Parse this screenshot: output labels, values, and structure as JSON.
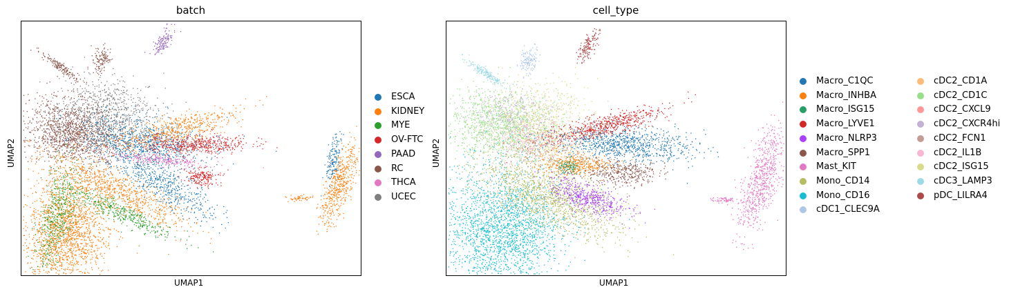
{
  "chart_data": [
    {
      "type": "scatter",
      "title": "batch",
      "xlabel": "UMAP1",
      "ylabel": "UMAP2",
      "legend_placement": "right",
      "grid": false,
      "series": [
        {
          "name": "ESCA",
          "color": "#1f77b4"
        },
        {
          "name": "KIDNEY",
          "color": "#ff7f0e"
        },
        {
          "name": "MYE",
          "color": "#2ca02c"
        },
        {
          "name": "OV-FTC",
          "color": "#d62728"
        },
        {
          "name": "PAAD",
          "color": "#9467bd"
        },
        {
          "name": "RC",
          "color": "#8c564b"
        },
        {
          "name": "THCA",
          "color": "#e377c2"
        },
        {
          "name": "UCEC",
          "color": "#7f7f7f"
        }
      ]
    },
    {
      "type": "scatter",
      "title": "cell_type",
      "xlabel": "UMAP1",
      "ylabel": "UMAP2",
      "legend_placement": "right",
      "grid": false,
      "series": [
        {
          "name": "Macro_C1QC",
          "color": "#1f77b4"
        },
        {
          "name": "Macro_INHBA",
          "color": "#ff7f0e"
        },
        {
          "name": "Macro_ISG15",
          "color": "#279e68"
        },
        {
          "name": "Macro_LYVE1",
          "color": "#d62728"
        },
        {
          "name": "Macro_NLRP3",
          "color": "#aa40fc"
        },
        {
          "name": "Macro_SPP1",
          "color": "#8c564b"
        },
        {
          "name": "Mast_KIT",
          "color": "#e377c2"
        },
        {
          "name": "Mono_CD14",
          "color": "#b5bd61"
        },
        {
          "name": "Mono_CD16",
          "color": "#17becf"
        },
        {
          "name": "cDC1_CLEC9A",
          "color": "#aec7e8"
        },
        {
          "name": "cDC2_CD1A",
          "color": "#ffbb78"
        },
        {
          "name": "cDC2_CD1C",
          "color": "#98df8a"
        },
        {
          "name": "cDC2_CXCL9",
          "color": "#ff9896"
        },
        {
          "name": "cDC2_CXCR4hi",
          "color": "#c5b0d5"
        },
        {
          "name": "cDC2_FCN1",
          "color": "#c49c94"
        },
        {
          "name": "cDC2_IL1B",
          "color": "#f7b6d2"
        },
        {
          "name": "cDC2_ISG15",
          "color": "#dbdb8d"
        },
        {
          "name": "cDC3_LAMP3",
          "color": "#9edae5"
        },
        {
          "name": "pDC_LILRA4",
          "color": "#ad494a"
        }
      ]
    }
  ]
}
